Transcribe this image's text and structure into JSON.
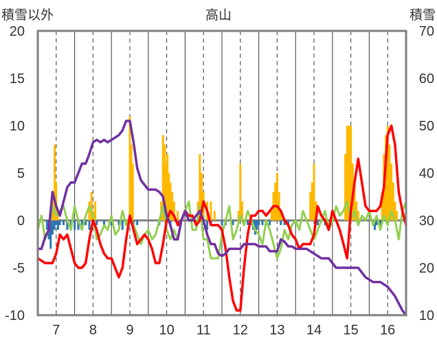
{
  "chart_data": {
    "type": "line",
    "title": "高山",
    "ylabel": "積雪以外",
    "y2label": "積雪",
    "ylim": [
      -10,
      20
    ],
    "y2lim": [
      10,
      70
    ],
    "yticks": [
      -10,
      -5,
      0,
      5,
      10,
      15,
      20
    ],
    "y2ticks": [
      10,
      20,
      30,
      40,
      50,
      60,
      70
    ],
    "xlim": [
      6.5,
      16.5
    ],
    "xticks": [
      7,
      8,
      9,
      10,
      11,
      12,
      13,
      14,
      15,
      16
    ],
    "grid": true,
    "series": [
      {
        "role": "precip-bars-orange",
        "axis": "left",
        "color": "#FFB800",
        "kind": "bar",
        "x": [
          6.88,
          6.92,
          6.96,
          7.0,
          7.04,
          7.9,
          7.96,
          8.02,
          8.06,
          9.0,
          9.04,
          9.08,
          9.85,
          9.9,
          9.95,
          9.98,
          10.02,
          10.06,
          10.1,
          10.15,
          10.2,
          10.3,
          10.85,
          10.9,
          10.95,
          11.0,
          11.1,
          11.2,
          11.3,
          11.95,
          12.0,
          12.05,
          12.85,
          12.9,
          12.95,
          13.0,
          13.05,
          13.1,
          13.9,
          13.95,
          14.0,
          14.05,
          14.85,
          14.9,
          14.95,
          15.0,
          15.05,
          15.1,
          15.15,
          15.2,
          15.85,
          15.9,
          15.95,
          16.0,
          16.05,
          16.1,
          16.15,
          16.2,
          16.25
        ],
        "values": [
          2,
          3,
          8,
          4,
          1,
          2,
          3,
          1,
          2,
          11,
          8,
          6,
          2,
          9,
          8,
          6,
          7,
          5,
          4,
          3,
          2,
          1,
          2,
          7,
          5,
          3,
          2,
          2,
          1,
          1,
          6,
          2,
          1,
          3,
          4,
          5,
          3,
          1,
          3,
          4,
          6,
          2,
          7,
          10,
          10,
          10,
          6,
          4,
          2,
          1,
          3,
          7,
          9,
          10,
          8,
          6,
          4,
          2,
          1
        ]
      },
      {
        "role": "precip-bars-blue",
        "axis": "left",
        "color": "#2E75B6",
        "kind": "bar",
        "x": [
          6.75,
          6.8,
          6.85,
          6.9,
          6.95,
          7.0,
          7.05,
          7.1,
          7.2,
          7.3,
          7.4,
          7.5,
          7.6,
          7.7,
          7.8,
          7.9,
          8.0,
          8.1,
          8.3,
          8.5,
          8.7,
          8.8,
          9.1,
          9.2,
          9.8,
          10.1,
          10.3,
          10.8,
          11.0,
          11.1,
          11.2,
          11.5,
          11.6,
          11.8,
          12.2,
          12.3,
          12.35,
          12.4,
          12.45,
          12.5,
          12.6,
          12.7,
          12.8,
          13.1,
          13.2,
          13.3,
          14.1,
          14.3,
          15.6,
          15.65,
          15.7,
          15.8
        ],
        "values": [
          -1,
          -2,
          -3,
          -1.5,
          -1,
          -0.5,
          -1,
          -0.5,
          -0.5,
          -1,
          -0.5,
          -1,
          -1,
          -0.5,
          -0.5,
          -1,
          -0.5,
          -0.5,
          -0.5,
          -0.5,
          -0.5,
          -1,
          -0.5,
          -0.5,
          -0.5,
          -0.5,
          -0.5,
          -0.5,
          -0.5,
          -1,
          -0.5,
          -0.5,
          -0.5,
          -0.5,
          -0.5,
          -0.5,
          -1,
          -1.5,
          -1,
          -0.5,
          -0.5,
          -0.5,
          -0.5,
          -0.5,
          -0.5,
          -0.5,
          -0.5,
          -0.5,
          -0.5,
          -1,
          -0.5,
          -0.5
        ]
      },
      {
        "role": "line-red",
        "axis": "left",
        "color": "#FF0000",
        "x": [
          6.5,
          6.7,
          6.9,
          7.0,
          7.1,
          7.2,
          7.3,
          7.4,
          7.5,
          7.6,
          7.7,
          7.8,
          7.9,
          8.0,
          8.1,
          8.2,
          8.3,
          8.4,
          8.5,
          8.6,
          8.7,
          8.8,
          8.9,
          9.0,
          9.1,
          9.2,
          9.3,
          9.4,
          9.5,
          9.6,
          9.7,
          9.8,
          9.9,
          10.0,
          10.1,
          10.2,
          10.3,
          10.4,
          10.5,
          10.6,
          10.7,
          10.8,
          10.9,
          11.0,
          11.1,
          11.2,
          11.3,
          11.4,
          11.5,
          11.6,
          11.7,
          11.8,
          11.9,
          12.0,
          12.1,
          12.2,
          12.3,
          12.4,
          12.5,
          12.6,
          12.7,
          12.8,
          12.9,
          13.0,
          13.1,
          13.2,
          13.3,
          13.4,
          13.5,
          13.6,
          13.7,
          13.8,
          13.9,
          14.0,
          14.1,
          14.2,
          14.3,
          14.4,
          14.5,
          14.6,
          14.7,
          14.8,
          14.9,
          15.0,
          15.1,
          15.2,
          15.3,
          15.4,
          15.5,
          15.6,
          15.7,
          15.8,
          15.9,
          16.0,
          16.1,
          16.2,
          16.3,
          16.4,
          16.5
        ],
        "values": [
          -4,
          -4.5,
          -4.5,
          -3.5,
          -1.5,
          -2,
          -1.5,
          -3,
          -4.5,
          -5,
          -5,
          -4.5,
          -2,
          0,
          -1,
          -2.5,
          -3.5,
          -4,
          -4,
          -5,
          -6,
          -5,
          -2,
          0.5,
          -1,
          -2.5,
          -2,
          -1.5,
          -2,
          -3,
          -4.5,
          -4.5,
          -2.5,
          0,
          1,
          0.5,
          -0.5,
          0,
          1,
          0.5,
          0.5,
          -0.5,
          0,
          2,
          1,
          -0.5,
          -0.5,
          -0.5,
          -1,
          -3,
          -6,
          -8.5,
          -9.5,
          -9.5,
          -5,
          -1.5,
          0.5,
          0.5,
          1,
          1,
          0.5,
          1,
          1.5,
          1.5,
          1,
          0,
          -0.5,
          -1.5,
          -2,
          -3,
          -2.5,
          -2.5,
          -2.5,
          -1.5,
          1.5,
          0.5,
          0,
          -1,
          1,
          0,
          -1,
          -2.5,
          -4,
          1,
          4,
          6.5,
          4,
          1.5,
          1,
          1,
          1,
          1.5,
          3.5,
          9,
          10,
          8,
          3,
          1,
          -0.5
        ]
      },
      {
        "role": "line-green",
        "axis": "left",
        "color": "#92D050",
        "x": [
          6.5,
          6.6,
          6.7,
          6.8,
          6.9,
          7.0,
          7.1,
          7.2,
          7.3,
          7.4,
          7.5,
          7.6,
          7.7,
          7.8,
          7.9,
          8.0,
          8.1,
          8.2,
          8.3,
          8.4,
          8.5,
          8.6,
          8.7,
          8.8,
          8.9,
          9.0,
          9.1,
          9.2,
          9.3,
          9.4,
          9.5,
          9.6,
          9.7,
          9.8,
          9.9,
          10.0,
          10.1,
          10.2,
          10.3,
          10.4,
          10.5,
          10.6,
          10.7,
          10.8,
          10.9,
          11.0,
          11.1,
          11.2,
          11.3,
          11.4,
          11.5,
          11.6,
          11.7,
          11.8,
          11.9,
          12.0,
          12.1,
          12.2,
          12.3,
          12.4,
          12.5,
          12.6,
          12.7,
          12.8,
          12.9,
          13.0,
          13.1,
          13.2,
          13.3,
          13.4,
          13.5,
          13.6,
          13.7,
          13.8,
          13.9,
          14.0,
          14.1,
          14.2,
          14.3,
          14.4,
          14.5,
          14.6,
          14.7,
          14.8,
          14.9,
          15.0,
          15.1,
          15.2,
          15.3,
          15.4,
          15.5,
          15.6,
          15.7,
          15.8,
          15.9,
          16.0,
          16.1,
          16.2,
          16.3,
          16.4,
          16.5
        ],
        "values": [
          -1,
          0.5,
          -2,
          -1,
          1.5,
          0.5,
          1,
          1.5,
          0,
          -1,
          1.5,
          0,
          -1,
          0.5,
          1.5,
          0.5,
          -2,
          -1.5,
          -0.5,
          -1,
          0.5,
          -1.5,
          -1,
          1,
          -0.5,
          0.5,
          -0.5,
          -1.5,
          -2.5,
          -1.5,
          -1,
          -2,
          -1.5,
          0,
          1.5,
          -1,
          -2,
          -1,
          -2,
          0,
          1,
          2,
          -1,
          -1,
          1.5,
          -2,
          -2,
          -4,
          -4,
          -4,
          -1.5,
          0,
          1.5,
          -2,
          -1,
          0.5,
          -0.5,
          1,
          0,
          -1,
          -1.5,
          -2.5,
          0,
          -1,
          -2.5,
          -4,
          -3,
          -1,
          -2,
          -0.5,
          0,
          -1,
          1,
          0,
          -1,
          -2,
          -1,
          0,
          1,
          -1,
          0,
          1.5,
          0.5,
          1,
          2,
          0,
          1,
          -0.5,
          0.5,
          0,
          1,
          -0.5,
          0.5,
          -1,
          0.5,
          -0.5,
          1,
          0,
          -2,
          1,
          2
        ]
      },
      {
        "role": "line-purple",
        "axis": "right",
        "color": "#7030A0",
        "x": [
          6.5,
          6.6,
          6.7,
          6.8,
          6.9,
          7.0,
          7.1,
          7.2,
          7.3,
          7.4,
          7.5,
          7.6,
          7.7,
          7.8,
          7.9,
          8.0,
          8.1,
          8.2,
          8.3,
          8.4,
          8.5,
          8.6,
          8.7,
          8.8,
          8.9,
          9.0,
          9.1,
          9.2,
          9.3,
          9.4,
          9.5,
          9.6,
          9.7,
          9.8,
          9.9,
          10.0,
          10.1,
          10.2,
          10.3,
          10.4,
          10.5,
          10.6,
          10.7,
          10.8,
          10.9,
          11.0,
          11.1,
          11.2,
          11.3,
          11.4,
          11.5,
          11.6,
          11.7,
          11.8,
          11.9,
          12.0,
          12.1,
          12.2,
          12.3,
          12.4,
          12.5,
          12.6,
          12.7,
          12.8,
          12.9,
          13.0,
          13.1,
          13.2,
          13.3,
          13.4,
          13.5,
          13.6,
          13.7,
          13.8,
          13.9,
          14.0,
          14.2,
          14.4,
          14.6,
          14.8,
          15.0,
          15.1,
          15.2,
          15.4,
          15.6,
          15.8,
          16.0,
          16.1,
          16.2,
          16.4,
          16.5
        ],
        "values": [
          24,
          24,
          26.5,
          28,
          36,
          33,
          31,
          34,
          37,
          38,
          38,
          40,
          42,
          42,
          44,
          46.5,
          47,
          46.5,
          47,
          46.5,
          47,
          47.5,
          48,
          49,
          51,
          51,
          46.5,
          41,
          38.5,
          37.5,
          36.5,
          36.5,
          36.5,
          36,
          35,
          31,
          29,
          26,
          26,
          30,
          32,
          30,
          30,
          31,
          32,
          30,
          27,
          25,
          25,
          23,
          22.5,
          23,
          24,
          24,
          24,
          24,
          25,
          25,
          25,
          25,
          24.5,
          24.5,
          24.5,
          23.5,
          23.5,
          23.5,
          26,
          25.5,
          24.5,
          24.5,
          24,
          24,
          24,
          24,
          23.5,
          23,
          22,
          22,
          20,
          20,
          20,
          20,
          20,
          18,
          17,
          17,
          16,
          15,
          14,
          11,
          10
        ]
      }
    ]
  }
}
